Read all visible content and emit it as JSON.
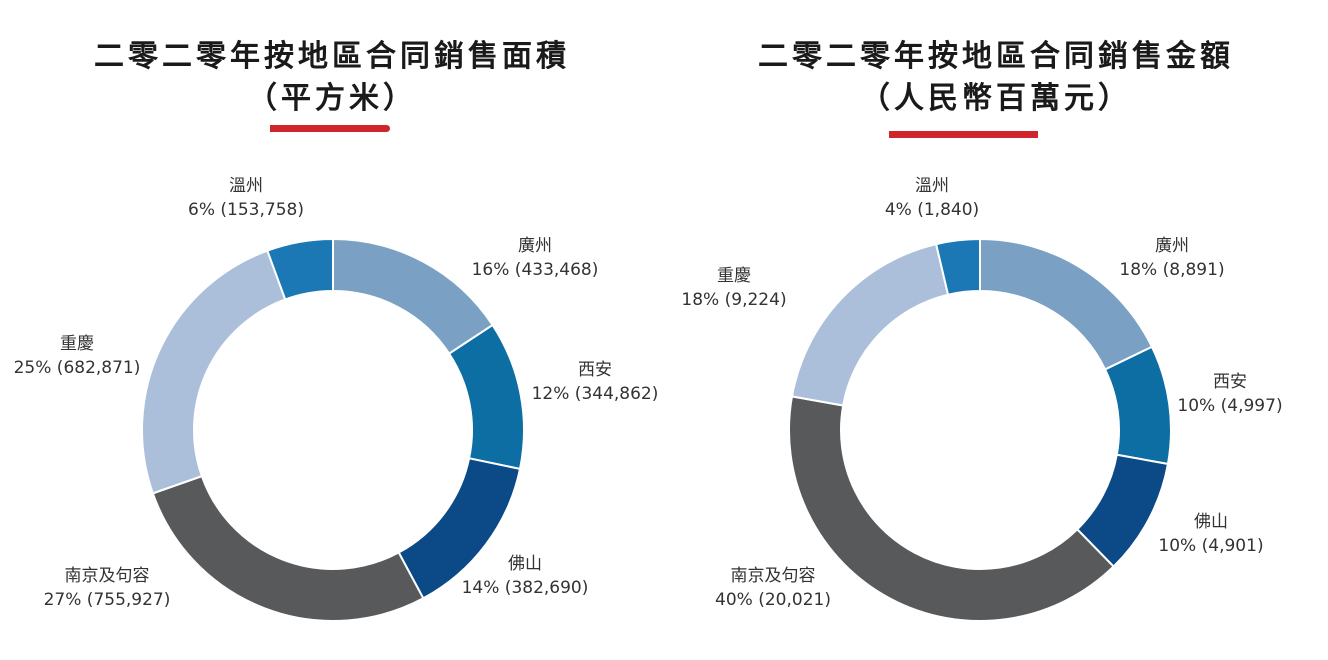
{
  "chart_data": [
    {
      "type": "pie",
      "title": "二零二零年按地區合同銷售面積",
      "subtitle": "（平方米）",
      "categories": [
        "廣州",
        "西安",
        "佛山",
        "南京及句容",
        "重慶",
        "溫州"
      ],
      "values": [
        433468,
        344862,
        382690,
        755927,
        682871,
        153758
      ],
      "percent_labels": [
        "16%",
        "12%",
        "14%",
        "27%",
        "25%",
        "6%"
      ],
      "value_labels": [
        "433,468",
        "344,862",
        "382,690",
        "755,927",
        "682,871",
        "153,758"
      ],
      "colors": [
        "#7aa1c3",
        "#0d6ea3",
        "#0b4a87",
        "#58595b",
        "#abbfdb",
        "#1b78b4"
      ]
    },
    {
      "type": "pie",
      "title": "二零二零年按地區合同銷售金額",
      "subtitle": "（人民幣百萬元）",
      "categories": [
        "廣州",
        "西安",
        "佛山",
        "南京及句容",
        "重慶",
        "溫州"
      ],
      "values": [
        8891,
        4997,
        4901,
        20021,
        9224,
        1840
      ],
      "percent_labels": [
        "18%",
        "10%",
        "10%",
        "40%",
        "18%",
        "4%"
      ],
      "value_labels": [
        "8,891",
        "4,997",
        "4,901",
        "20,021",
        "9,224",
        "1,840"
      ],
      "colors": [
        "#7aa1c3",
        "#0d6ea3",
        "#0b4a87",
        "#58595b",
        "#abbfdb",
        "#1b78b4"
      ]
    }
  ]
}
